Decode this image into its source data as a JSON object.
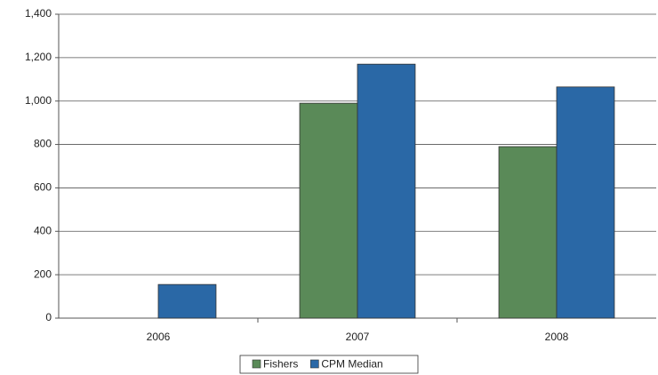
{
  "chart_data": {
    "type": "bar",
    "categories": [
      "2006",
      "2007",
      "2008"
    ],
    "series": [
      {
        "name": "Fishers",
        "color": "#5a8a58",
        "values": [
          null,
          990,
          790
        ]
      },
      {
        "name": "CPM Median",
        "color": "#2a68a6",
        "values": [
          155,
          1170,
          1065
        ]
      }
    ],
    "ylim": [
      0,
      1400
    ],
    "yticks": [
      0,
      200,
      400,
      600,
      800,
      {
        "value": 1000,
        "label": "1,000"
      },
      {
        "value": 1200,
        "label": "1,200"
      },
      {
        "value": 1400,
        "label": "1,400"
      }
    ],
    "grid": true,
    "legend": "bottom"
  }
}
